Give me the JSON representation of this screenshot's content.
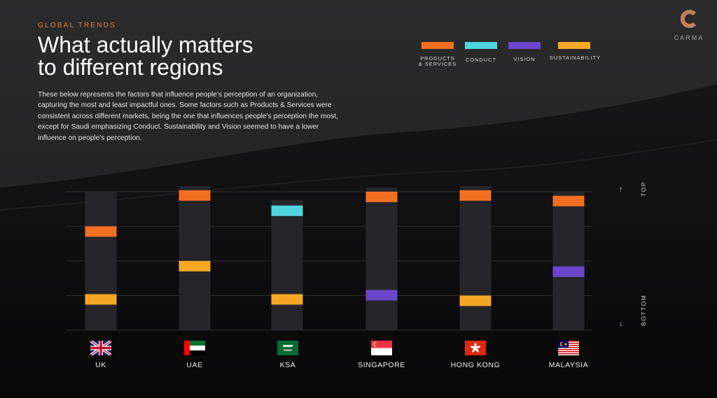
{
  "header": {
    "eyebrow": "GLOBAL TRENDS",
    "title_line1": "What actually matters",
    "title_line2": "to different regions",
    "description": "These below represents the factors that influence people's perception of an organization, capturing the most and least impactful ones. Some factors such as Products & Services were consistent across different markets, being the one that influences people's perception the most, except for Saudi emphasizing Conduct. Sustainability and Vision seemed to have a lower influence on people's perception."
  },
  "brand": {
    "name": "CARMA",
    "color": "#c0805a"
  },
  "axis": {
    "top_label": "TOP",
    "bottom_label": "BOTTOM",
    "up_arrow": "↑",
    "down_arrow": "↓"
  },
  "legend": [
    {
      "label": "PRODUCTS\n& SERVICES",
      "color": "#f26f22"
    },
    {
      "label": "CONDUCT",
      "color": "#4fd5e0"
    },
    {
      "label": "VISION",
      "color": "#6a46cc"
    },
    {
      "label": "SUSTAINABILITY",
      "color": "#f6a724"
    }
  ],
  "chart_data": {
    "type": "bar",
    "description_of_scale": "vertical rank position from top (0) to bottom (100)",
    "ylim": [
      0,
      100
    ],
    "categories": [
      "UK",
      "UAE",
      "KSA",
      "SINGAPORE",
      "HONG KONG",
      "MALAYSIA"
    ],
    "bar_tops": [
      0,
      -4,
      6,
      -3,
      -4,
      0
    ],
    "markers": [
      [
        {
          "factor": "PRODUCTS & SERVICES",
          "color": "#f26f22",
          "position": 25
        },
        {
          "factor": "SUSTAINABILITY",
          "color": "#f6a724",
          "position": 74
        }
      ],
      [
        {
          "factor": "PRODUCTS & SERVICES",
          "color": "#f26f22",
          "position": -1
        },
        {
          "factor": "SUSTAINABILITY",
          "color": "#f6a724",
          "position": 50
        }
      ],
      [
        {
          "factor": "CONDUCT",
          "color": "#4fd5e0",
          "position": 10
        },
        {
          "factor": "SUSTAINABILITY",
          "color": "#f6a724",
          "position": 74
        }
      ],
      [
        {
          "factor": "PRODUCTS & SERVICES",
          "color": "#f26f22",
          "position": 0
        },
        {
          "factor": "VISION",
          "color": "#6a46cc",
          "position": 71
        }
      ],
      [
        {
          "factor": "PRODUCTS & SERVICES",
          "color": "#f26f22",
          "position": -1
        },
        {
          "factor": "SUSTAINABILITY",
          "color": "#f6a724",
          "position": 75
        }
      ],
      [
        {
          "factor": "PRODUCTS & SERVICES",
          "color": "#f26f22",
          "position": 3
        },
        {
          "factor": "VISION",
          "color": "#6a46cc",
          "position": 54
        }
      ]
    ],
    "grid": true
  },
  "regions": [
    {
      "label": "UK",
      "flag": "uk-flag"
    },
    {
      "label": "UAE",
      "flag": "uae-flag"
    },
    {
      "label": "KSA",
      "flag": "ksa-flag"
    },
    {
      "label": "SINGAPORE",
      "flag": "singapore-flag"
    },
    {
      "label": "HONG KONG",
      "flag": "hong-kong-flag"
    },
    {
      "label": "MALAYSIA",
      "flag": "malaysia-flag"
    }
  ]
}
